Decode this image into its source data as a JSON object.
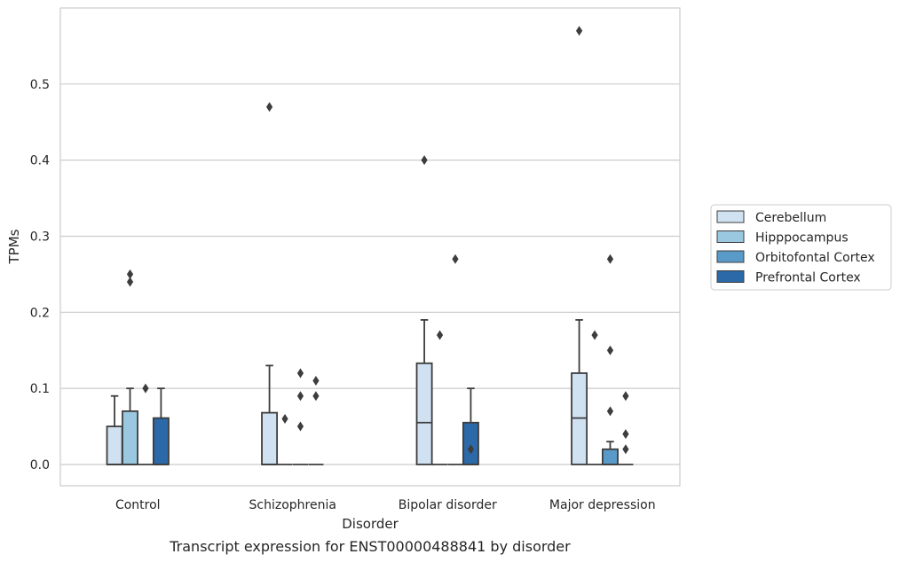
{
  "chart_data": {
    "type": "box",
    "caption": "Transcript expression for ENST00000488841 by disorder",
    "xlabel": "Disorder",
    "ylabel": "TPMs",
    "ylim": [
      -0.028,
      0.6
    ],
    "yticks": [
      "0.0",
      "0.1",
      "0.2",
      "0.3",
      "0.4",
      "0.5"
    ],
    "ytick_values": [
      0.0,
      0.1,
      0.2,
      0.3,
      0.4,
      0.5
    ],
    "grid": "horizontal",
    "legend_position": "right",
    "categories": [
      "Control",
      "Schizophrenia",
      "Bipolar disorder",
      "Major depression"
    ],
    "series": [
      {
        "name": "Cerebellum",
        "color": "#d0e1f2",
        "boxes": [
          {
            "q1": 0,
            "median": 0,
            "q3": 0.05,
            "whisker_low": 0,
            "whisker_high": 0.09,
            "outliers": []
          },
          {
            "q1": 0,
            "median": 0,
            "q3": 0.068,
            "whisker_low": 0,
            "whisker_high": 0.13,
            "outliers": [
              0.47
            ]
          },
          {
            "q1": 0,
            "median": 0.055,
            "q3": 0.133,
            "whisker_low": 0,
            "whisker_high": 0.19,
            "outliers": [
              0.4
            ]
          },
          {
            "q1": 0,
            "median": 0.061,
            "q3": 0.12,
            "whisker_low": 0,
            "whisker_high": 0.19,
            "outliers": [
              0.57
            ]
          }
        ]
      },
      {
        "name": "Hipppocampus",
        "color": "#9ac8e0",
        "boxes": [
          {
            "q1": 0,
            "median": 0,
            "q3": 0.07,
            "whisker_low": 0,
            "whisker_high": 0.1,
            "outliers": [
              0.24,
              0.25
            ]
          },
          {
            "q1": 0,
            "median": 0,
            "q3": 0,
            "whisker_low": 0,
            "whisker_high": 0,
            "outliers": [
              0.06
            ]
          },
          {
            "q1": 0,
            "median": 0,
            "q3": 0,
            "whisker_low": 0,
            "whisker_high": 0,
            "outliers": [
              0.17
            ]
          },
          {
            "q1": 0,
            "median": 0,
            "q3": 0,
            "whisker_low": 0,
            "whisker_high": 0,
            "outliers": [
              0.17
            ]
          }
        ]
      },
      {
        "name": "Orbitofontal Cortex",
        "color": "#5a9ac8",
        "boxes": [
          {
            "q1": 0,
            "median": 0,
            "q3": 0,
            "whisker_low": 0,
            "whisker_high": 0,
            "outliers": [
              0.1
            ]
          },
          {
            "q1": 0,
            "median": 0,
            "q3": 0,
            "whisker_low": 0,
            "whisker_high": 0,
            "outliers": [
              0.05,
              0.09,
              0.12
            ]
          },
          {
            "q1": 0,
            "median": 0,
            "q3": 0,
            "whisker_low": 0,
            "whisker_high": 0,
            "outliers": [
              0.27
            ]
          },
          {
            "q1": 0,
            "median": 0,
            "q3": 0.02,
            "whisker_low": 0,
            "whisker_high": 0.03,
            "outliers": [
              0.07,
              0.15,
              0.27
            ]
          }
        ]
      },
      {
        "name": "Prefrontal Cortex",
        "color": "#2b69a8",
        "boxes": [
          {
            "q1": 0,
            "median": 0,
            "q3": 0.061,
            "whisker_low": 0,
            "whisker_high": 0.1,
            "outliers": []
          },
          {
            "q1": 0,
            "median": 0,
            "q3": 0,
            "whisker_low": 0,
            "whisker_high": 0,
            "outliers": [
              0.09,
              0.11
            ]
          },
          {
            "q1": 0,
            "median": 0,
            "q3": 0.055,
            "whisker_low": 0,
            "whisker_high": 0.1,
            "outliers": [
              0.02
            ]
          },
          {
            "q1": 0,
            "median": 0,
            "q3": 0,
            "whisker_low": 0,
            "whisker_high": 0,
            "outliers": [
              0.02,
              0.04,
              0.09
            ]
          }
        ]
      }
    ]
  }
}
